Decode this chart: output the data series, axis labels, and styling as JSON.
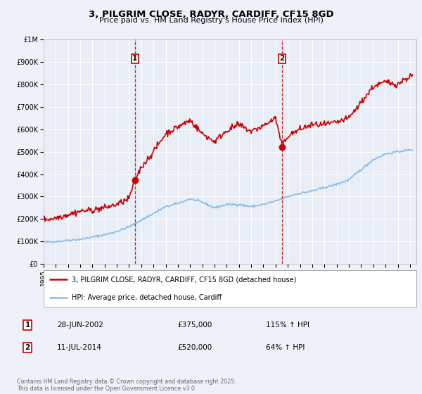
{
  "title": "3, PILGRIM CLOSE, RADYR, CARDIFF, CF15 8GD",
  "subtitle": "Price paid vs. HM Land Registry's House Price Index (HPI)",
  "background_color": "#eef2f8",
  "plot_bg_color": "#e8edf6",
  "grid_color": "#ffffff",
  "hpi_line_color": "#8bbce8",
  "price_line_color": "#cc0000",
  "sale1_date": 2002.49,
  "sale1_price": 375000,
  "sale2_date": 2014.53,
  "sale2_price": 520000,
  "xlim": [
    1995,
    2025.5
  ],
  "ylim": [
    0,
    1000000
  ],
  "yticks": [
    0,
    100000,
    200000,
    300000,
    400000,
    500000,
    600000,
    700000,
    800000,
    900000,
    1000000
  ],
  "ytick_labels": [
    "£0",
    "£100K",
    "£200K",
    "£300K",
    "£400K",
    "£500K",
    "£600K",
    "£700K",
    "£800K",
    "£900K",
    "£1M"
  ],
  "xticks": [
    1995,
    1996,
    1997,
    1998,
    1999,
    2000,
    2001,
    2002,
    2003,
    2004,
    2005,
    2006,
    2007,
    2008,
    2009,
    2010,
    2011,
    2012,
    2013,
    2014,
    2015,
    2016,
    2017,
    2018,
    2019,
    2020,
    2021,
    2022,
    2023,
    2024,
    2025
  ],
  "legend_label_red": "3, PILGRIM CLOSE, RADYR, CARDIFF, CF15 8GD (detached house)",
  "legend_label_blue": "HPI: Average price, detached house, Cardiff",
  "footnote": "Contains HM Land Registry data © Crown copyright and database right 2025.\nThis data is licensed under the Open Government Licence v3.0.",
  "table_rows": [
    {
      "num": "1",
      "date": "28-JUN-2002",
      "price": "£375,000",
      "hpi": "115% ↑ HPI"
    },
    {
      "num": "2",
      "date": "11-JUL-2014",
      "price": "£520,000",
      "hpi": "64% ↑ HPI"
    }
  ]
}
